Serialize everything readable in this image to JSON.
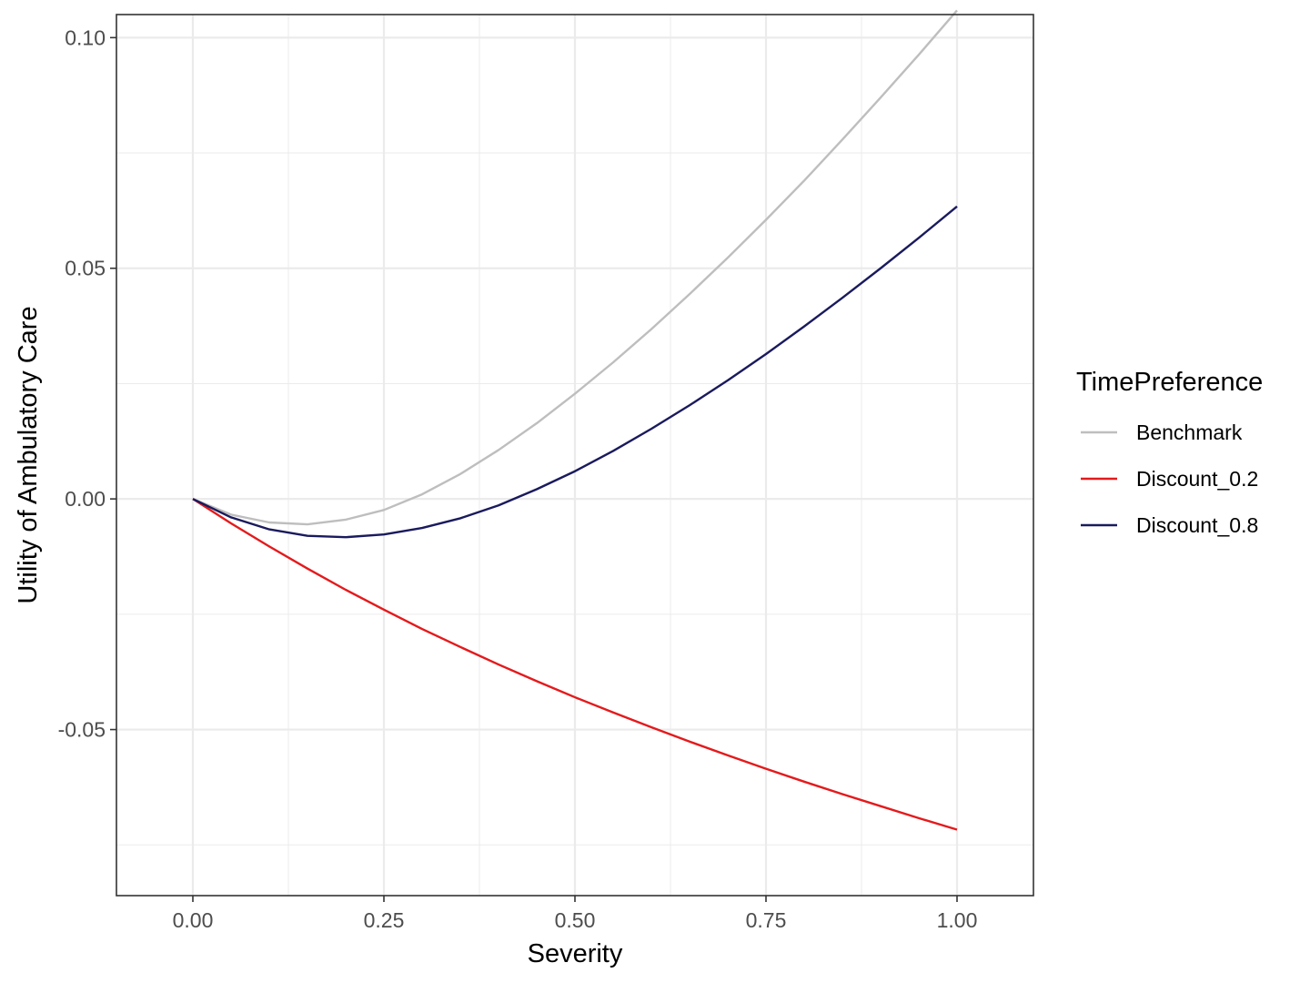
{
  "chart_data": {
    "type": "line",
    "title": "",
    "xlabel": "Severity",
    "ylabel": "Utility of Ambulatory Care",
    "xlim": [
      -0.1,
      1.1
    ],
    "ylim": [
      -0.086,
      0.105
    ],
    "x_ticks": [
      0.0,
      0.25,
      0.5,
      0.75,
      1.0
    ],
    "x_tick_labels": [
      "0.00",
      "0.25",
      "0.50",
      "0.75",
      "1.00"
    ],
    "x_minor_ticks": [
      0.125,
      0.375,
      0.625,
      0.875
    ],
    "y_ticks": [
      -0.05,
      0.0,
      0.05,
      0.1
    ],
    "y_tick_labels": [
      "-0.05",
      "0.00",
      "0.05",
      "0.10"
    ],
    "y_minor_ticks": [
      -0.075,
      -0.025,
      0.025,
      0.075
    ],
    "grid": true,
    "theme": "bw",
    "legend": {
      "title": "TimePreference",
      "position": "right"
    },
    "x": [
      0.0,
      0.05,
      0.1,
      0.15,
      0.2,
      0.25,
      0.3,
      0.35,
      0.4,
      0.45,
      0.5,
      0.55,
      0.6,
      0.65,
      0.7,
      0.75,
      0.8,
      0.85,
      0.9,
      0.95,
      1.0
    ],
    "series": [
      {
        "name": "Benchmark",
        "color": "#bebebe",
        "values": [
          0.0,
          -0.0034,
          -0.0051,
          -0.0055,
          -0.0045,
          -0.0024,
          0.001,
          0.0054,
          0.0106,
          0.0164,
          0.0228,
          0.0296,
          0.0368,
          0.0444,
          0.0523,
          0.0605,
          0.069,
          0.0779,
          0.087,
          0.0963,
          0.1059
        ]
      },
      {
        "name": "Discount_0.2",
        "color": "#e41a1c",
        "values": [
          0.0,
          -0.0053,
          -0.0103,
          -0.0151,
          -0.0197,
          -0.024,
          -0.0282,
          -0.0321,
          -0.0359,
          -0.0395,
          -0.043,
          -0.0463,
          -0.0495,
          -0.0526,
          -0.0556,
          -0.0585,
          -0.0613,
          -0.064,
          -0.0666,
          -0.0692,
          -0.0717
        ]
      },
      {
        "name": "Discount_0.8",
        "color": "#1a1a5e",
        "values": [
          0.0,
          -0.004,
          -0.0066,
          -0.008,
          -0.0083,
          -0.0077,
          -0.0063,
          -0.0042,
          -0.0014,
          0.0021,
          0.006,
          0.0104,
          0.0152,
          0.0203,
          0.0257,
          0.0314,
          0.0374,
          0.0436,
          0.05,
          0.0566,
          0.0634
        ]
      }
    ]
  }
}
